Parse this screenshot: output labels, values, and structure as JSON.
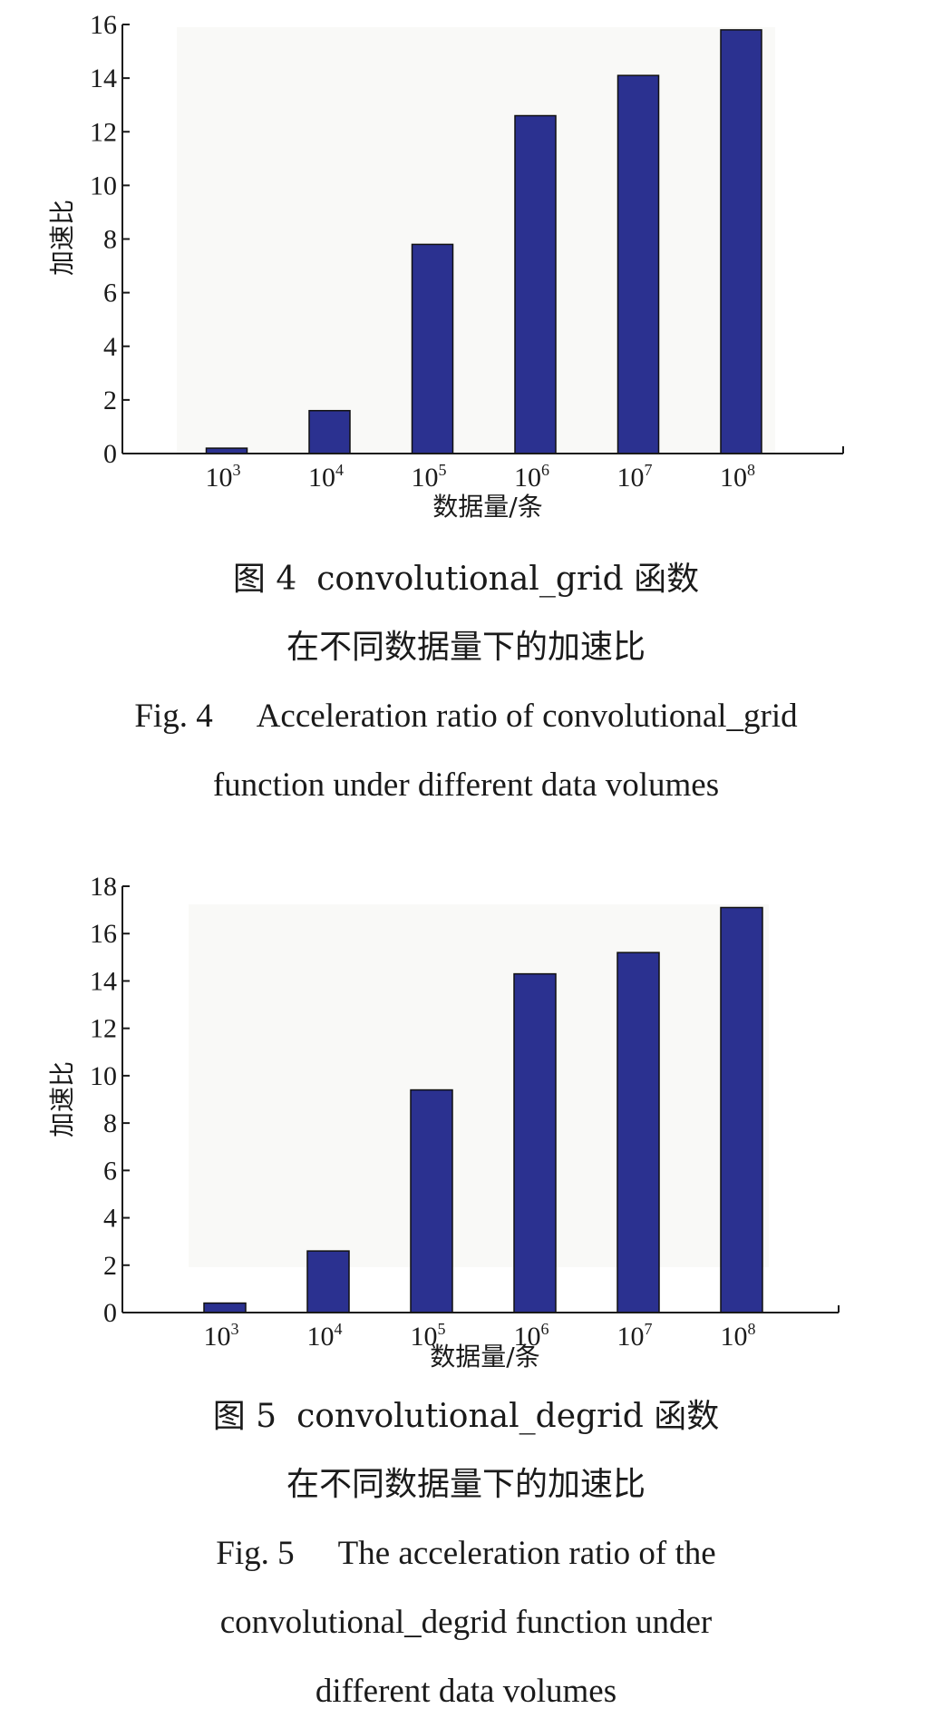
{
  "chart_data": [
    {
      "type": "bar",
      "categories": [
        "10^3",
        "10^4",
        "10^5",
        "10^6",
        "10^7",
        "10^8"
      ],
      "category_base": [
        "10",
        "10",
        "10",
        "10",
        "10",
        "10"
      ],
      "category_exp": [
        "3",
        "4",
        "5",
        "6",
        "7",
        "8"
      ],
      "values": [
        0.2,
        1.6,
        7.8,
        12.6,
        14.1,
        15.8
      ],
      "xlabel": "数据量/条",
      "ylabel": "加速比",
      "ylim": [
        0,
        16
      ],
      "yticks": [
        0,
        2,
        4,
        6,
        8,
        10,
        12,
        14,
        16
      ],
      "bar_color": "#2b3190",
      "grid": false
    },
    {
      "type": "bar",
      "categories": [
        "10^3",
        "10^4",
        "10^5",
        "10^6",
        "10^7",
        "10^8"
      ],
      "category_base": [
        "10",
        "10",
        "10",
        "10",
        "10",
        "10"
      ],
      "category_exp": [
        "3",
        "4",
        "5",
        "6",
        "7",
        "8"
      ],
      "values": [
        0.4,
        2.6,
        9.4,
        14.3,
        15.2,
        17.1
      ],
      "xlabel": "数据量/条",
      "ylabel": "加速比",
      "ylim": [
        0,
        18
      ],
      "yticks": [
        0,
        2,
        4,
        6,
        8,
        10,
        12,
        14,
        16,
        18
      ],
      "bar_color": "#2b3190",
      "grid": false
    }
  ],
  "captions": {
    "fig4": {
      "cn_num": "图 4",
      "cn_line1": "convolutional_grid 函数",
      "cn_line2": "在不同数据量下的加速比",
      "en_num": "Fig. 4",
      "en_line1": "Acceleration ratio of convolutional_grid",
      "en_line2": "function under different data volumes"
    },
    "fig5": {
      "cn_num": "图 5",
      "cn_line1": "convolutional_degrid 函数",
      "cn_line2": "在不同数据量下的加速比",
      "en_num": "Fig. 5",
      "en_line1": "The acceleration ratio of the",
      "en_line2": "convolutional_degrid function under",
      "en_line3": "different data volumes"
    }
  }
}
